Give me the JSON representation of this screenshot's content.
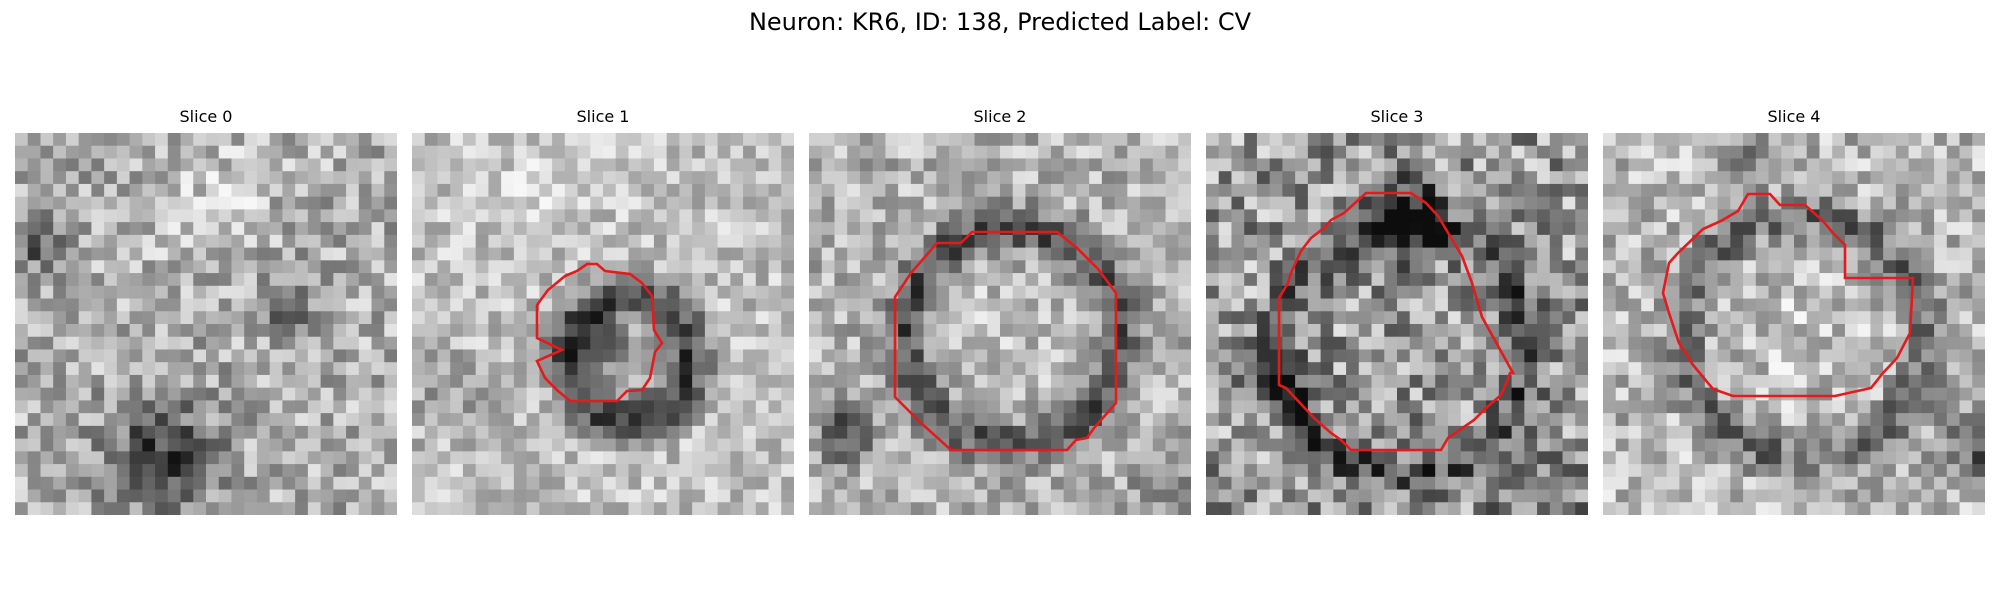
{
  "figure": {
    "title": "Neuron: KR6, ID: 138, Predicted Label: CV"
  },
  "colors": {
    "background": "#ffffff",
    "contour": "#e41a1c"
  },
  "slices": [
    {
      "label": "Slice 0",
      "has_contour": false,
      "center_tone": "mixed",
      "dark_spots": [
        "left-edge",
        "bottom-center"
      ]
    },
    {
      "label": "Slice 1",
      "has_contour": true,
      "center_tone": "dark-ring with lighter center",
      "dark_spots": []
    },
    {
      "label": "Slice 2",
      "has_contour": true,
      "center_tone": "light",
      "dark_spots": [
        "bottom-left"
      ]
    },
    {
      "label": "Slice 3",
      "has_contour": true,
      "center_tone": "mid-gray",
      "dark_spots": [
        "top-center"
      ]
    },
    {
      "label": "Slice 4",
      "has_contour": true,
      "center_tone": "light",
      "dark_spots": [
        "right-edge"
      ]
    }
  ]
}
